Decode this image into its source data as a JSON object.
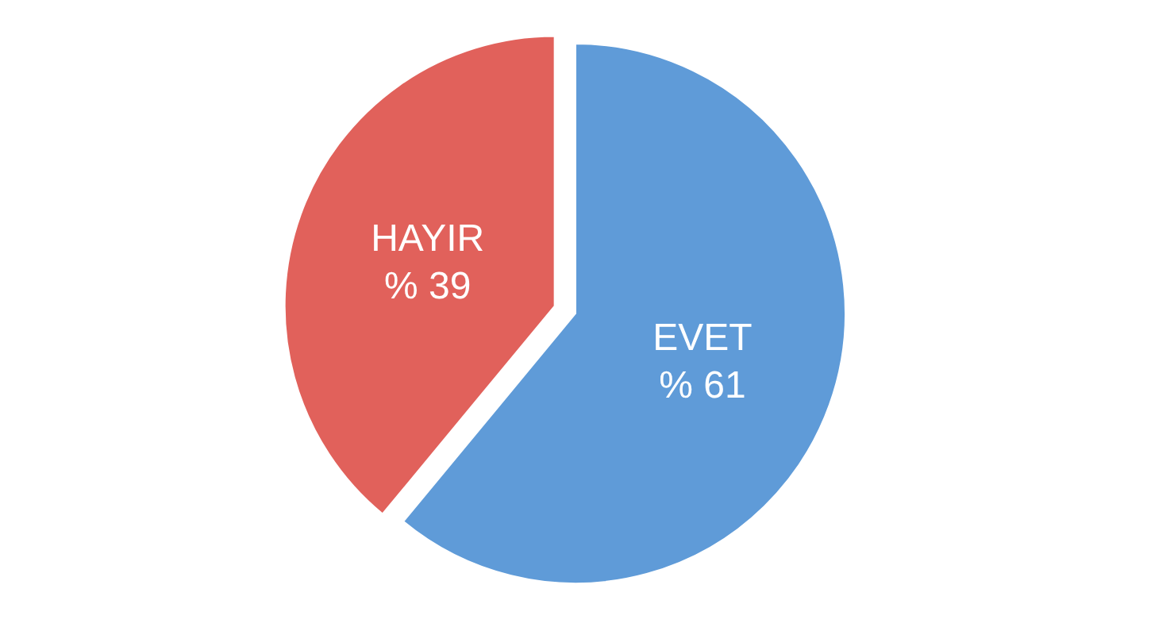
{
  "chart_data": {
    "type": "pie",
    "categories": [
      "EVET",
      "HAYIR"
    ],
    "values": [
      61,
      39
    ],
    "colors": [
      "#5f9bd8",
      "#e1615b"
    ],
    "value_labels": [
      "% 61",
      "% 39"
    ]
  }
}
